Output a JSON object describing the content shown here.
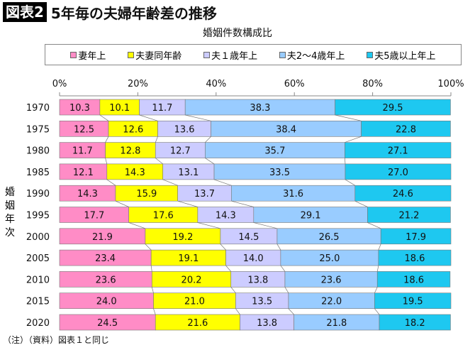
{
  "header": {
    "badge": "図表2",
    "title": "5年毎の夫婦年齢差の推移"
  },
  "footnote": "（注）（資料）図表１と同じ",
  "chart_data": {
    "type": "bar",
    "orientation": "horizontal",
    "stacked": "percent",
    "title": "婚姻件数構成比",
    "ylabel": "婚姻年次",
    "xlabel": "",
    "xlim": [
      0,
      100
    ],
    "xticks": [
      "0%",
      "20%",
      "40%",
      "60%",
      "80%",
      "100%"
    ],
    "legend_position": "top",
    "series_lines": true,
    "categories": [
      "1970",
      "1975",
      "1980",
      "1985",
      "1990",
      "1995",
      "2000",
      "2005",
      "2010",
      "2015",
      "2020"
    ],
    "series": [
      {
        "name": "妻年上",
        "color": "#ff8cc6",
        "values": [
          10.3,
          12.5,
          11.7,
          12.1,
          14.3,
          17.7,
          21.9,
          23.4,
          23.6,
          24.0,
          24.5
        ]
      },
      {
        "name": "夫妻同年齢",
        "color": "#ffff00",
        "values": [
          10.1,
          12.6,
          12.8,
          14.3,
          15.9,
          17.6,
          19.2,
          19.1,
          20.2,
          21.0,
          21.6
        ]
      },
      {
        "name": "夫１歳年上",
        "color": "#ccccff",
        "values": [
          11.7,
          13.6,
          12.7,
          13.1,
          13.7,
          14.3,
          14.5,
          14.0,
          13.8,
          13.5,
          13.8
        ]
      },
      {
        "name": "夫2～4歳年上",
        "color": "#99ccff",
        "values": [
          38.3,
          38.4,
          35.7,
          33.5,
          31.6,
          29.1,
          26.5,
          25.0,
          23.6,
          22.0,
          21.8
        ]
      },
      {
        "name": "夫5歳以上年上",
        "color": "#1ec8f0",
        "values": [
          29.5,
          22.8,
          27.1,
          27.0,
          24.6,
          21.2,
          17.9,
          18.6,
          18.6,
          19.5,
          18.2
        ]
      }
    ]
  }
}
